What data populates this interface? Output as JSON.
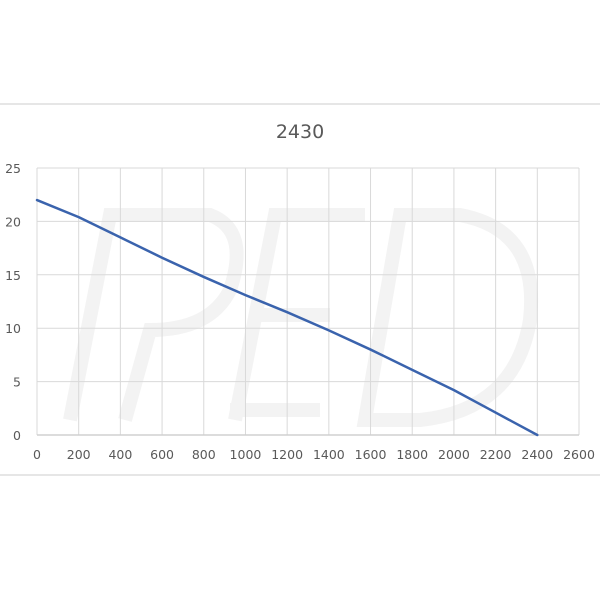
{
  "chart_data": {
    "type": "line",
    "title": "2430",
    "xlabel": "",
    "ylabel": "",
    "xlim": [
      0,
      2600
    ],
    "ylim": [
      0,
      25
    ],
    "x_ticks": [
      0,
      200,
      400,
      600,
      800,
      1000,
      1200,
      1400,
      1600,
      1800,
      2000,
      2200,
      2400,
      2600
    ],
    "y_ticks": [
      0,
      5,
      10,
      15,
      20,
      25
    ],
    "grid": true,
    "legend": null,
    "series": [
      {
        "name": "2430",
        "color": "#3a63ad",
        "x": [
          0,
          200,
          400,
          600,
          800,
          1000,
          1200,
          1400,
          1600,
          1800,
          2000,
          2200,
          2400
        ],
        "y": [
          22.0,
          20.4,
          18.5,
          16.6,
          14.8,
          13.1,
          11.5,
          9.8,
          8.0,
          6.1,
          4.2,
          2.1,
          0.0
        ]
      }
    ]
  },
  "colors": {
    "line": "#3a63ad",
    "grid": "#d9d9d9",
    "text": "#595959",
    "watermark": "#f3f3f3"
  },
  "watermark": "PED"
}
